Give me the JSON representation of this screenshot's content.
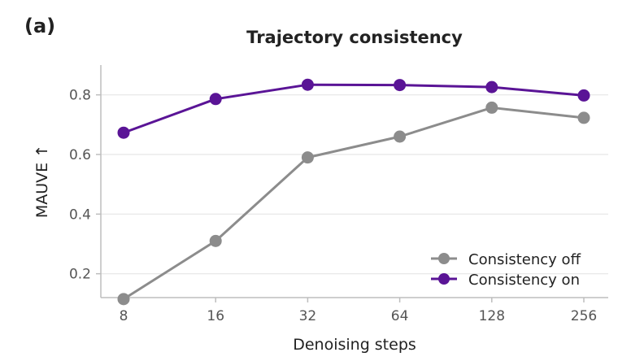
{
  "panel_label": "(a)",
  "chart_data": {
    "type": "line",
    "title": "Trajectory consistency",
    "xlabel": "Denoising steps",
    "ylabel": "MAUVE ↑",
    "categories": [
      "8",
      "16",
      "32",
      "64",
      "128",
      "256"
    ],
    "yticks": [
      "0.2",
      "0.4",
      "0.6",
      "0.8"
    ],
    "ytick_values": [
      0.2,
      0.4,
      0.6,
      0.8
    ],
    "ylim": [
      0.12,
      0.9
    ],
    "grid": "horizontal",
    "legend_position": "bottom-right",
    "series": [
      {
        "name": "Consistency off",
        "color": "#8c8c8c",
        "values": [
          0.115,
          0.31,
          0.59,
          0.66,
          0.757,
          0.723
        ]
      },
      {
        "name": "Consistency on",
        "color": "#5a1496",
        "values": [
          0.673,
          0.786,
          0.834,
          0.833,
          0.826,
          0.798
        ]
      }
    ]
  }
}
